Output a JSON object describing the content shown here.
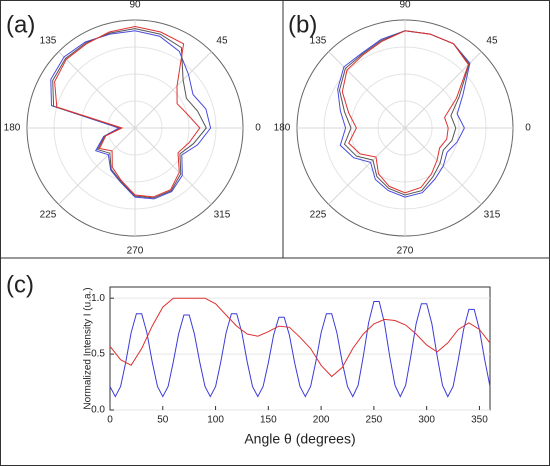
{
  "chart_data": [
    {
      "type": "polar",
      "label": "(a)",
      "theta": [
        0,
        15,
        30,
        45,
        60,
        75,
        90,
        105,
        120,
        135,
        150,
        165,
        180,
        195,
        210,
        225,
        240,
        255,
        270,
        285,
        300,
        315,
        330,
        345
      ],
      "rlim": [
        0,
        1
      ],
      "angle_ticks": [
        0,
        45,
        90,
        135,
        180,
        225,
        270,
        315
      ],
      "series": [
        {
          "color": "#4a4ae0",
          "values": [
            0.7,
            0.68,
            0.62,
            0.7,
            0.82,
            0.88,
            0.9,
            0.9,
            0.92,
            0.93,
            0.9,
            0.8,
            0.15,
            0.3,
            0.42,
            0.35,
            0.45,
            0.52,
            0.64,
            0.68,
            0.68,
            0.62,
            0.5,
            0.6
          ]
        },
        {
          "color": "#555555",
          "values": [
            0.66,
            0.6,
            0.55,
            0.63,
            0.86,
            0.9,
            0.92,
            0.91,
            0.91,
            0.91,
            0.88,
            0.78,
            0.13,
            0.29,
            0.4,
            0.33,
            0.44,
            0.51,
            0.63,
            0.67,
            0.67,
            0.6,
            0.48,
            0.56
          ]
        },
        {
          "color": "#e03030",
          "values": [
            0.6,
            0.5,
            0.45,
            0.55,
            0.9,
            0.92,
            0.94,
            0.92,
            0.9,
            0.9,
            0.86,
            0.75,
            0.12,
            0.28,
            0.38,
            0.3,
            0.42,
            0.5,
            0.62,
            0.66,
            0.66,
            0.58,
            0.46,
            0.52
          ]
        }
      ]
    },
    {
      "type": "polar",
      "label": "(b)",
      "theta": [
        0,
        15,
        30,
        45,
        60,
        75,
        90,
        105,
        120,
        135,
        150,
        165,
        180,
        195,
        210,
        225,
        240,
        255,
        270,
        285,
        300,
        315,
        330,
        345
      ],
      "rlim": [
        0,
        1
      ],
      "angle_ticks": [
        0,
        45,
        90,
        135,
        180,
        225,
        270,
        315
      ],
      "series": [
        {
          "color": "#4a4ae0",
          "values": [
            0.55,
            0.5,
            0.62,
            0.85,
            0.9,
            0.9,
            0.9,
            0.85,
            0.8,
            0.8,
            0.72,
            0.62,
            0.55,
            0.62,
            0.55,
            0.45,
            0.55,
            0.6,
            0.64,
            0.62,
            0.55,
            0.5,
            0.45,
            0.5
          ]
        },
        {
          "color": "#555555",
          "values": [
            0.47,
            0.44,
            0.58,
            0.84,
            0.9,
            0.9,
            0.9,
            0.84,
            0.79,
            0.78,
            0.7,
            0.58,
            0.5,
            0.58,
            0.52,
            0.42,
            0.52,
            0.58,
            0.62,
            0.6,
            0.52,
            0.46,
            0.41,
            0.45
          ]
        },
        {
          "color": "#e03030",
          "values": [
            0.4,
            0.38,
            0.55,
            0.83,
            0.9,
            0.9,
            0.9,
            0.83,
            0.78,
            0.76,
            0.67,
            0.54,
            0.45,
            0.54,
            0.48,
            0.38,
            0.49,
            0.56,
            0.6,
            0.57,
            0.49,
            0.42,
            0.37,
            0.4
          ]
        }
      ]
    },
    {
      "type": "line",
      "label": "(c)",
      "xlabel": "Angle θ (degrees)",
      "ylabel": "Normalized Intensity I (u.a.)",
      "xlim": [
        0,
        360
      ],
      "xticks": [
        0,
        50,
        100,
        150,
        200,
        250,
        300,
        350
      ],
      "ylim": [
        0,
        1.1
      ],
      "yticks": [
        {
          "value": 0,
          "label": "0.0"
        },
        {
          "value": 0.5,
          "label": "0.5"
        },
        {
          "value": 1,
          "label": "1.0"
        }
      ],
      "series": [
        {
          "color": "#3b3bd8",
          "x": [
            0,
            5,
            10,
            15,
            20,
            25,
            30,
            35,
            40,
            45,
            50,
            55,
            60,
            65,
            70,
            75,
            80,
            85,
            90,
            95,
            100,
            105,
            110,
            115,
            120,
            125,
            130,
            135,
            140,
            145,
            150,
            155,
            160,
            165,
            170,
            175,
            180,
            185,
            190,
            195,
            200,
            205,
            210,
            215,
            220,
            225,
            230,
            235,
            240,
            245,
            250,
            255,
            260,
            265,
            270,
            275,
            280,
            285,
            290,
            295,
            300,
            305,
            310,
            315,
            320,
            325,
            330,
            335,
            340,
            345,
            350,
            355,
            360
          ],
          "values": [
            0.21,
            0.12,
            0.21,
            0.43,
            0.69,
            0.86,
            0.86,
            0.69,
            0.43,
            0.21,
            0.12,
            0.21,
            0.43,
            0.68,
            0.85,
            0.85,
            0.68,
            0.43,
            0.21,
            0.12,
            0.21,
            0.43,
            0.69,
            0.86,
            0.86,
            0.69,
            0.43,
            0.21,
            0.12,
            0.21,
            0.42,
            0.67,
            0.83,
            0.83,
            0.67,
            0.42,
            0.21,
            0.12,
            0.21,
            0.43,
            0.69,
            0.86,
            0.86,
            0.69,
            0.43,
            0.21,
            0.12,
            0.22,
            0.48,
            0.78,
            0.97,
            0.97,
            0.78,
            0.48,
            0.22,
            0.12,
            0.22,
            0.48,
            0.77,
            0.95,
            0.95,
            0.77,
            0.48,
            0.22,
            0.12,
            0.21,
            0.45,
            0.72,
            0.9,
            0.9,
            0.72,
            0.45,
            0.21
          ]
        },
        {
          "color": "#e03030",
          "x": [
            0,
            10,
            20,
            30,
            40,
            50,
            60,
            70,
            80,
            90,
            100,
            110,
            120,
            130,
            140,
            150,
            160,
            170,
            180,
            190,
            200,
            210,
            220,
            230,
            240,
            250,
            260,
            270,
            280,
            290,
            300,
            310,
            320,
            330,
            340,
            350,
            360
          ],
          "values": [
            0.57,
            0.45,
            0.4,
            0.55,
            0.75,
            0.92,
            1.0,
            1.0,
            1.0,
            1.0,
            0.95,
            0.85,
            0.75,
            0.68,
            0.66,
            0.7,
            0.75,
            0.74,
            0.65,
            0.55,
            0.4,
            0.3,
            0.38,
            0.55,
            0.68,
            0.77,
            0.81,
            0.8,
            0.76,
            0.68,
            0.58,
            0.52,
            0.6,
            0.72,
            0.78,
            0.72,
            0.6
          ]
        }
      ]
    }
  ]
}
